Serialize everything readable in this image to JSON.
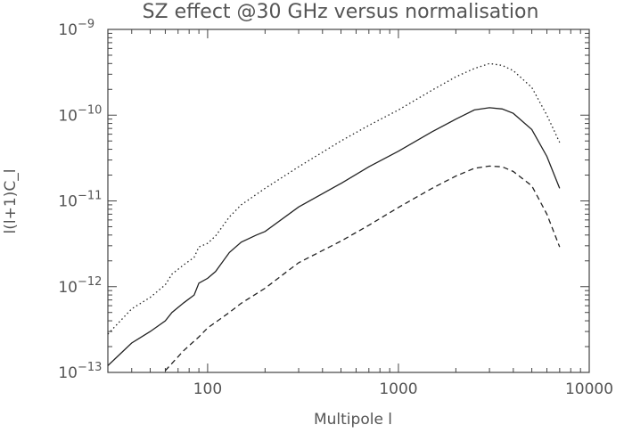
{
  "chart_data": {
    "type": "line",
    "title": "SZ effect @30 GHz versus normalisation",
    "xlabel": "Multipole l",
    "ylabel": "l(l+1)C_l",
    "xscale": "log",
    "yscale": "log",
    "xlim": [
      30,
      10000
    ],
    "ylim": [
      1e-13,
      1e-09
    ],
    "x_ticks": [
      {
        "value": 100,
        "label": "100"
      },
      {
        "value": 1000,
        "label": "1000"
      },
      {
        "value": 10000,
        "label": "10000"
      }
    ],
    "y_ticks": [
      {
        "value": 1e-13,
        "base": "10",
        "exp": "−13"
      },
      {
        "value": 1e-12,
        "base": "10",
        "exp": "−12"
      },
      {
        "value": 1e-11,
        "base": "10",
        "exp": "−11"
      },
      {
        "value": 1e-10,
        "base": "10",
        "exp": "−10"
      },
      {
        "value": 1e-09,
        "base": "10",
        "exp": "−9"
      }
    ],
    "grid": false,
    "series": [
      {
        "style": "dotted",
        "points": [
          [
            30,
            2.8e-13
          ],
          [
            40,
            5.5e-13
          ],
          [
            50,
            7.5e-13
          ],
          [
            60,
            1.05e-12
          ],
          [
            65,
            1.4e-12
          ],
          [
            75,
            1.8e-12
          ],
          [
            85,
            2.2e-12
          ],
          [
            90,
            2.9e-12
          ],
          [
            100,
            3.2e-12
          ],
          [
            110,
            3.9e-12
          ],
          [
            130,
            6.5e-12
          ],
          [
            150,
            9e-12
          ],
          [
            200,
            1.4e-11
          ],
          [
            300,
            2.5e-11
          ],
          [
            500,
            5e-11
          ],
          [
            700,
            7.6e-11
          ],
          [
            1000,
            1.15e-10
          ],
          [
            1500,
            1.95e-10
          ],
          [
            2000,
            2.8e-10
          ],
          [
            2500,
            3.5e-10
          ],
          [
            3000,
            4e-10
          ],
          [
            3500,
            3.8e-10
          ],
          [
            4000,
            3.3e-10
          ],
          [
            5000,
            2.1e-10
          ],
          [
            6000,
            1e-10
          ],
          [
            7000,
            4.8e-11
          ]
        ]
      },
      {
        "style": "solid",
        "points": [
          [
            30,
            1.2e-13
          ],
          [
            40,
            2.2e-13
          ],
          [
            50,
            3e-13
          ],
          [
            60,
            4e-13
          ],
          [
            65,
            5e-13
          ],
          [
            75,
            6.5e-13
          ],
          [
            85,
            8e-13
          ],
          [
            90,
            1.1e-12
          ],
          [
            100,
            1.25e-12
          ],
          [
            110,
            1.5e-12
          ],
          [
            130,
            2.5e-12
          ],
          [
            150,
            3.3e-12
          ],
          [
            180,
            4e-12
          ],
          [
            200,
            4.4e-12
          ],
          [
            300,
            8.5e-12
          ],
          [
            500,
            1.6e-11
          ],
          [
            700,
            2.5e-11
          ],
          [
            1000,
            3.8e-11
          ],
          [
            1500,
            6.4e-11
          ],
          [
            2000,
            9e-11
          ],
          [
            2500,
            1.15e-10
          ],
          [
            3000,
            1.22e-10
          ],
          [
            3500,
            1.18e-10
          ],
          [
            4000,
            1.05e-10
          ],
          [
            5000,
            6.8e-11
          ],
          [
            6000,
            3.3e-11
          ],
          [
            7000,
            1.4e-11
          ]
        ]
      },
      {
        "style": "dashed",
        "points": [
          [
            60,
            1.05e-13
          ],
          [
            75,
            1.8e-13
          ],
          [
            90,
            2.6e-13
          ],
          [
            100,
            3.3e-13
          ],
          [
            130,
            5e-13
          ],
          [
            150,
            6.4e-13
          ],
          [
            200,
            9.6e-13
          ],
          [
            250,
            1.4e-12
          ],
          [
            300,
            1.9e-12
          ],
          [
            500,
            3.4e-12
          ],
          [
            700,
            5.2e-12
          ],
          [
            1000,
            8.4e-12
          ],
          [
            1500,
            1.4e-11
          ],
          [
            2000,
            1.95e-11
          ],
          [
            2500,
            2.4e-11
          ],
          [
            3000,
            2.55e-11
          ],
          [
            3500,
            2.5e-11
          ],
          [
            4000,
            2.2e-11
          ],
          [
            5000,
            1.5e-11
          ],
          [
            6000,
            7e-12
          ],
          [
            7000,
            2.9e-12
          ]
        ]
      }
    ]
  }
}
